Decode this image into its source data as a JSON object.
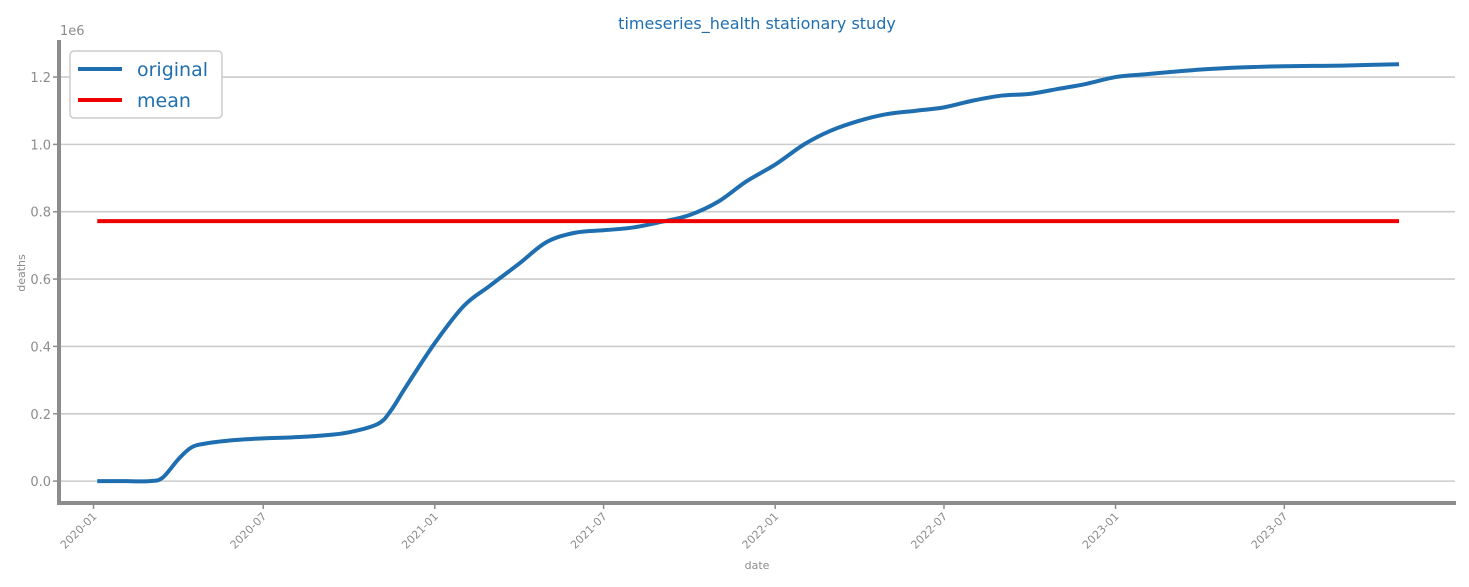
{
  "chart_data": {
    "type": "line",
    "title": "timeseries_health stationary study",
    "xlabel": "date",
    "ylabel": "deaths",
    "y_multiplier_label": "1e6",
    "x_range": [
      "2019-11-25",
      "2023-12-31"
    ],
    "ylim": [
      -0.065,
      1.31
    ],
    "y_ticks": [
      0.0,
      0.2,
      0.4,
      0.6,
      0.8,
      1.0,
      1.2
    ],
    "y_tick_labels": [
      "0.0",
      "0.2",
      "0.4",
      "0.6",
      "0.8",
      "1.0",
      "1.2"
    ],
    "x_ticks": [
      "2020-01-01",
      "2020-07-01",
      "2021-01-01",
      "2021-07-01",
      "2022-01-01",
      "2022-07-01",
      "2023-01-01",
      "2023-07-01"
    ],
    "x_tick_labels": [
      "2020-01",
      "2020-07",
      "2021-01",
      "2021-07",
      "2022-01",
      "2022-07",
      "2023-01",
      "2023-07"
    ],
    "grid": "horizontal",
    "legend_position": "top-left",
    "series": [
      {
        "name": "original",
        "color": "#1f6fb0",
        "points": [
          [
            "2020-01-05",
            0.0
          ],
          [
            "2020-02-01",
            0.0
          ],
          [
            "2020-03-01",
            0.0
          ],
          [
            "2020-03-15",
            0.01
          ],
          [
            "2020-04-01",
            0.065
          ],
          [
            "2020-04-15",
            0.1
          ],
          [
            "2020-05-01",
            0.112
          ],
          [
            "2020-06-01",
            0.122
          ],
          [
            "2020-07-01",
            0.127
          ],
          [
            "2020-08-01",
            0.13
          ],
          [
            "2020-09-01",
            0.135
          ],
          [
            "2020-10-01",
            0.145
          ],
          [
            "2020-11-01",
            0.17
          ],
          [
            "2020-11-15",
            0.21
          ],
          [
            "2020-12-01",
            0.28
          ],
          [
            "2021-01-01",
            0.41
          ],
          [
            "2021-02-01",
            0.52
          ],
          [
            "2021-03-01",
            0.58
          ],
          [
            "2021-04-01",
            0.645
          ],
          [
            "2021-05-01",
            0.71
          ],
          [
            "2021-06-01",
            0.738
          ],
          [
            "2021-07-01",
            0.745
          ],
          [
            "2021-08-01",
            0.753
          ],
          [
            "2021-09-01",
            0.77
          ],
          [
            "2021-10-01",
            0.79
          ],
          [
            "2021-11-01",
            0.83
          ],
          [
            "2021-12-01",
            0.89
          ],
          [
            "2022-01-01",
            0.94
          ],
          [
            "2022-02-01",
            1.0
          ],
          [
            "2022-03-01",
            1.04
          ],
          [
            "2022-04-01",
            1.07
          ],
          [
            "2022-05-01",
            1.09
          ],
          [
            "2022-06-01",
            1.1
          ],
          [
            "2022-07-01",
            1.11
          ],
          [
            "2022-08-01",
            1.13
          ],
          [
            "2022-09-01",
            1.145
          ],
          [
            "2022-10-01",
            1.15
          ],
          [
            "2022-11-01",
            1.165
          ],
          [
            "2022-12-01",
            1.18
          ],
          [
            "2023-01-01",
            1.2
          ],
          [
            "2023-02-01",
            1.208
          ],
          [
            "2023-03-01",
            1.215
          ],
          [
            "2023-04-01",
            1.222
          ],
          [
            "2023-05-01",
            1.227
          ],
          [
            "2023-06-01",
            1.23
          ],
          [
            "2023-07-01",
            1.232
          ],
          [
            "2023-08-01",
            1.233
          ],
          [
            "2023-09-01",
            1.234
          ],
          [
            "2023-10-01",
            1.236
          ],
          [
            "2023-11-01",
            1.238
          ]
        ]
      },
      {
        "name": "mean",
        "color": "#ee0000",
        "points": [
          [
            "2020-01-05",
            0.772
          ],
          [
            "2023-11-01",
            0.772
          ]
        ]
      }
    ]
  }
}
